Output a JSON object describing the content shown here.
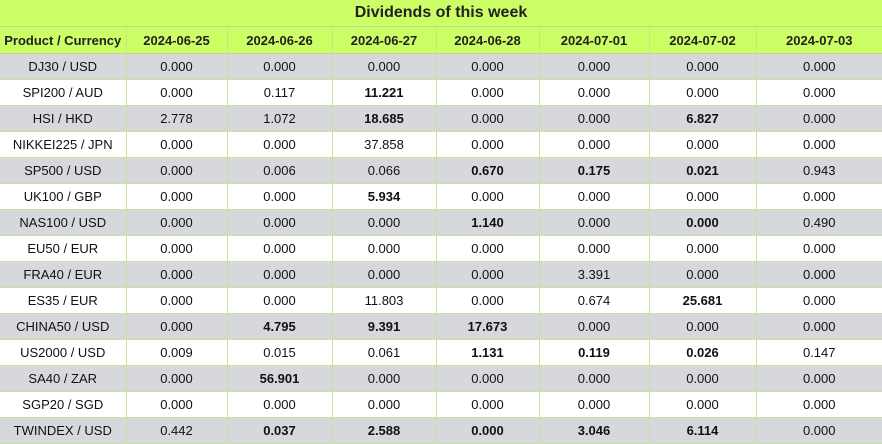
{
  "title": "Dividends of this week",
  "columns": [
    "Product / Currency",
    "2024-06-25",
    "2024-06-26",
    "2024-06-27",
    "2024-06-28",
    "2024-07-01",
    "2024-07-02",
    "2024-07-03"
  ],
  "colors": {
    "header_bg": "#ccff66",
    "row_alt_bg": "#d6d8de",
    "row_bg": "#ffffff",
    "grid": "#c8e29a"
  },
  "rows": [
    {
      "product": "DJ30 / USD",
      "values": [
        "0.000",
        "0.000",
        "0.000",
        "0.000",
        "0.000",
        "0.000",
        "0.000"
      ],
      "bold": [
        false,
        false,
        false,
        false,
        false,
        false,
        false
      ]
    },
    {
      "product": "SPI200 / AUD",
      "values": [
        "0.000",
        "0.117",
        "11.221",
        "0.000",
        "0.000",
        "0.000",
        "0.000"
      ],
      "bold": [
        false,
        false,
        true,
        false,
        false,
        false,
        false
      ]
    },
    {
      "product": "HSI / HKD",
      "values": [
        "2.778",
        "1.072",
        "18.685",
        "0.000",
        "0.000",
        "6.827",
        "0.000"
      ],
      "bold": [
        false,
        false,
        true,
        false,
        false,
        true,
        false
      ]
    },
    {
      "product": "NIKKEI225 / JPN",
      "values": [
        "0.000",
        "0.000",
        "37.858",
        "0.000",
        "0.000",
        "0.000",
        "0.000"
      ],
      "bold": [
        false,
        false,
        false,
        false,
        false,
        false,
        false
      ]
    },
    {
      "product": "SP500 / USD",
      "values": [
        "0.000",
        "0.006",
        "0.066",
        "0.670",
        "0.175",
        "0.021",
        "0.943"
      ],
      "bold": [
        false,
        false,
        false,
        true,
        true,
        true,
        false
      ]
    },
    {
      "product": "UK100 / GBP",
      "values": [
        "0.000",
        "0.000",
        "5.934",
        "0.000",
        "0.000",
        "0.000",
        "0.000"
      ],
      "bold": [
        false,
        false,
        true,
        false,
        false,
        false,
        false
      ]
    },
    {
      "product": "NAS100 / USD",
      "values": [
        "0.000",
        "0.000",
        "0.000",
        "1.140",
        "0.000",
        "0.000",
        "0.490"
      ],
      "bold": [
        false,
        false,
        false,
        true,
        false,
        true,
        false
      ]
    },
    {
      "product": "EU50 / EUR",
      "values": [
        "0.000",
        "0.000",
        "0.000",
        "0.000",
        "0.000",
        "0.000",
        "0.000"
      ],
      "bold": [
        false,
        false,
        false,
        false,
        false,
        false,
        false
      ]
    },
    {
      "product": "FRA40 / EUR",
      "values": [
        "0.000",
        "0.000",
        "0.000",
        "0.000",
        "3.391",
        "0.000",
        "0.000"
      ],
      "bold": [
        false,
        false,
        false,
        false,
        false,
        false,
        false
      ]
    },
    {
      "product": "ES35 / EUR",
      "values": [
        "0.000",
        "0.000",
        "11.803",
        "0.000",
        "0.674",
        "25.681",
        "0.000"
      ],
      "bold": [
        false,
        false,
        false,
        false,
        false,
        true,
        false
      ]
    },
    {
      "product": "CHINA50 / USD",
      "values": [
        "0.000",
        "4.795",
        "9.391",
        "17.673",
        "0.000",
        "0.000",
        "0.000"
      ],
      "bold": [
        false,
        true,
        true,
        true,
        false,
        false,
        false
      ]
    },
    {
      "product": "US2000 / USD",
      "values": [
        "0.009",
        "0.015",
        "0.061",
        "1.131",
        "0.119",
        "0.026",
        "0.147"
      ],
      "bold": [
        false,
        false,
        false,
        true,
        true,
        true,
        false
      ]
    },
    {
      "product": "SA40 / ZAR",
      "values": [
        "0.000",
        "56.901",
        "0.000",
        "0.000",
        "0.000",
        "0.000",
        "0.000"
      ],
      "bold": [
        false,
        true,
        false,
        false,
        false,
        false,
        false
      ]
    },
    {
      "product": "SGP20 / SGD",
      "values": [
        "0.000",
        "0.000",
        "0.000",
        "0.000",
        "0.000",
        "0.000",
        "0.000"
      ],
      "bold": [
        false,
        false,
        false,
        false,
        false,
        false,
        false
      ]
    },
    {
      "product": "TWINDEX / USD",
      "values": [
        "0.442",
        "0.037",
        "2.588",
        "0.000",
        "3.046",
        "6.114",
        "0.000"
      ],
      "bold": [
        false,
        true,
        true,
        true,
        true,
        true,
        false
      ]
    }
  ]
}
